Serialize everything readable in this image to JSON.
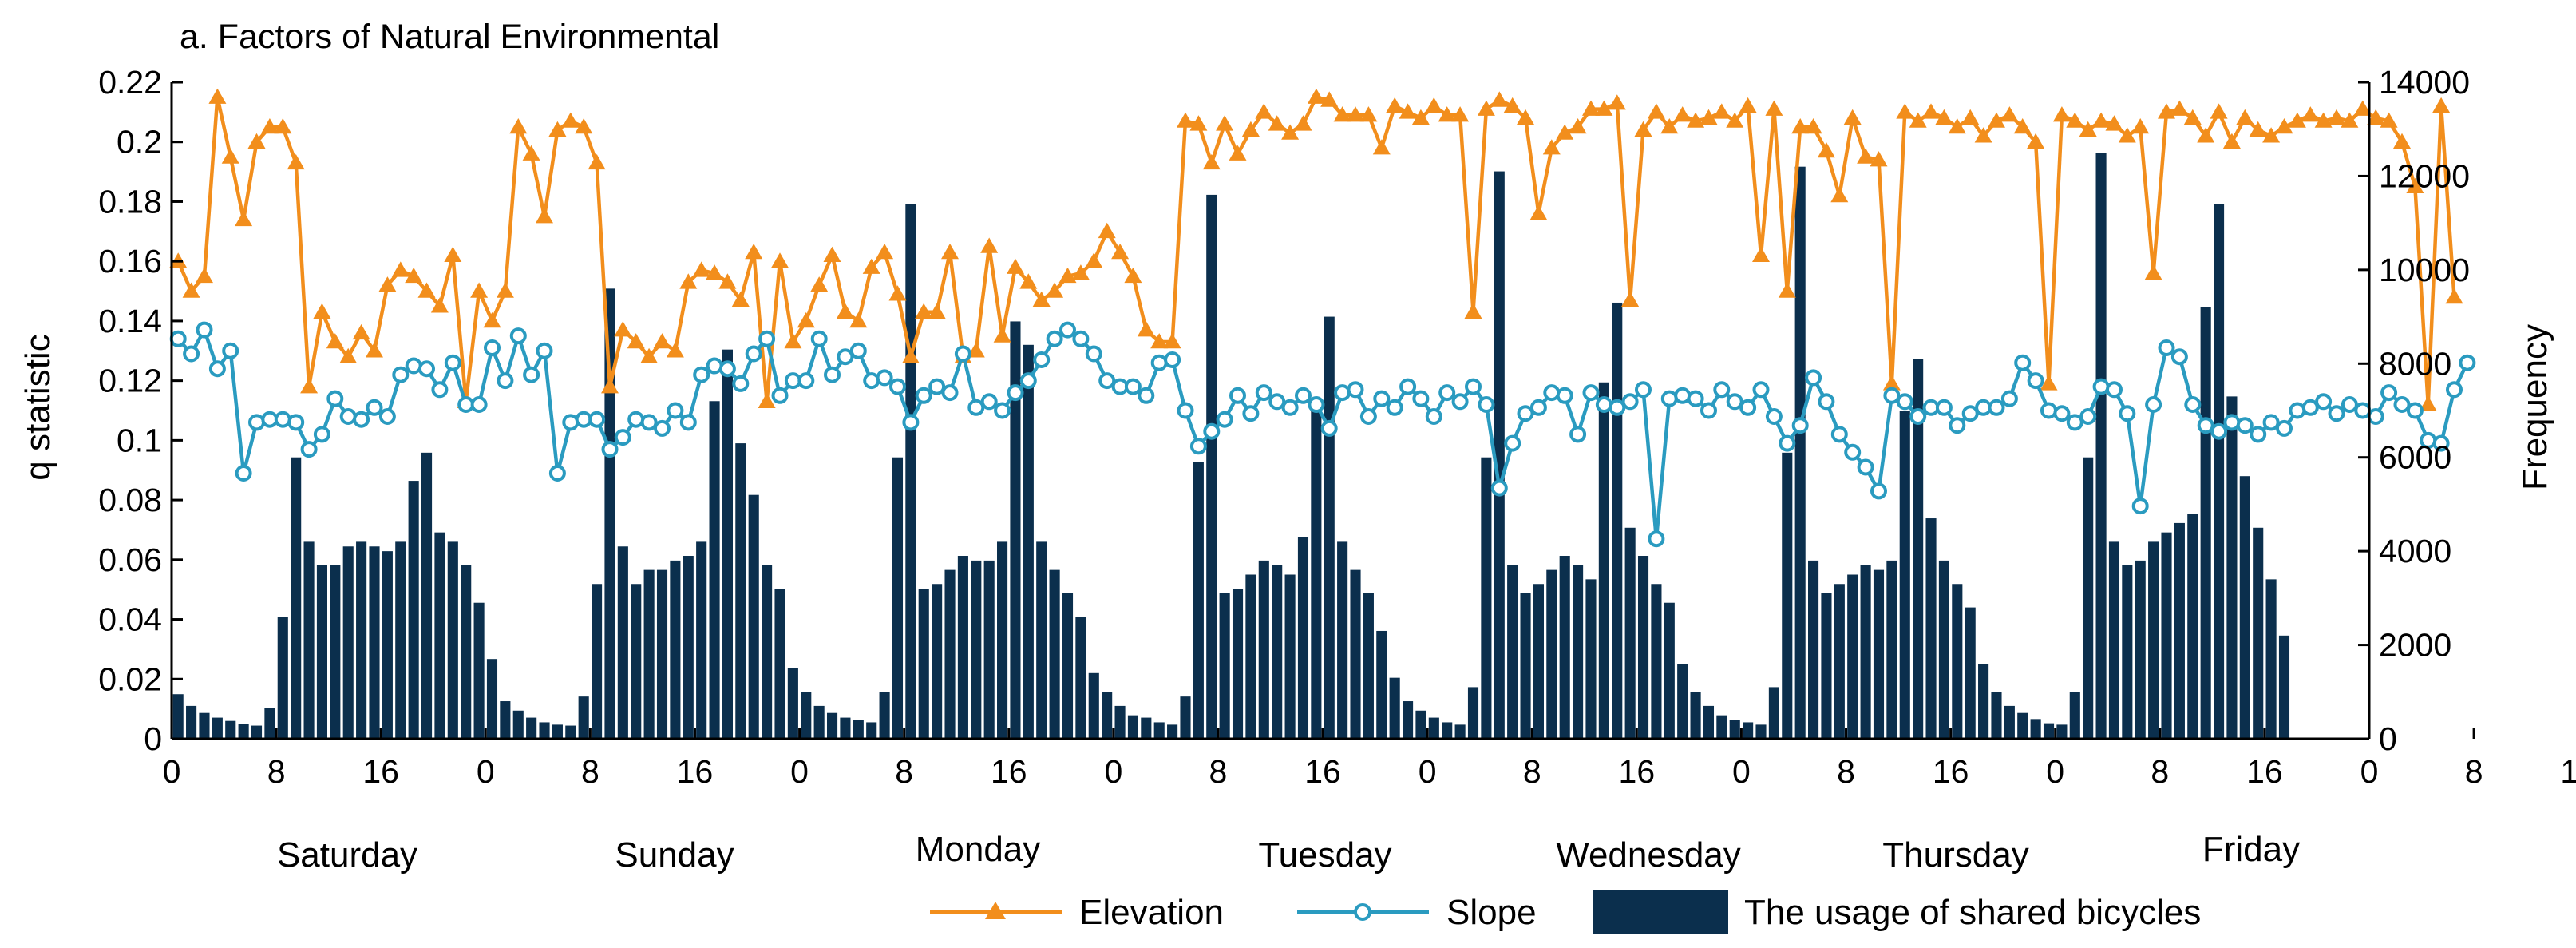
{
  "chart_data": {
    "type": "bar+line",
    "title": "a. Factors of Natural Environmental",
    "ylabel_left": "q statistic",
    "ylabel_right": "Frequency",
    "ylim_left": [
      0,
      0.22
    ],
    "ylim_right": [
      0,
      14000
    ],
    "yticks_left": [
      "0",
      "0.02",
      "0.04",
      "0.06",
      "0.08",
      "0.1",
      "0.12",
      "0.14",
      "0.16",
      "0.18",
      "0.2",
      "0.22"
    ],
    "yticks_right": [
      "0",
      "2000",
      "4000",
      "6000",
      "8000",
      "10000",
      "12000",
      "14000"
    ],
    "xticks": [
      "0",
      "8",
      "16",
      "0",
      "8",
      "16",
      "0",
      "8",
      "16",
      "0",
      "8",
      "16",
      "0",
      "8",
      "16",
      "0",
      "8",
      "16",
      "0",
      "8",
      "16",
      "0",
      "8",
      "16",
      "0"
    ],
    "days": [
      "Saturday",
      "Sunday",
      "Monday",
      "Tuesday",
      "Wednesday",
      "Thursday",
      "Friday"
    ],
    "grid": false,
    "legend_position": "bottom",
    "series": [
      {
        "name": "Elevation",
        "axis": "left",
        "color": "#f28e1c",
        "marker": "triangle",
        "values": [
          0.16,
          0.15,
          0.155,
          0.215,
          0.195,
          0.174,
          0.2,
          0.205,
          0.205,
          0.193,
          0.118,
          0.143,
          0.133,
          0.128,
          0.136,
          0.13,
          0.152,
          0.157,
          0.155,
          0.15,
          0.145,
          0.162,
          0.113,
          0.15,
          0.14,
          0.15,
          0.205,
          0.196,
          0.175,
          0.204,
          0.207,
          0.205,
          0.193,
          0.118,
          0.137,
          0.133,
          0.128,
          0.133,
          0.13,
          0.153,
          0.157,
          0.156,
          0.153,
          0.147,
          0.163,
          0.113,
          0.16,
          0.133,
          0.14,
          0.152,
          0.162,
          0.143,
          0.14,
          0.158,
          0.163,
          0.149,
          0.128,
          0.143,
          0.143,
          0.163,
          0.128,
          0.13,
          0.165,
          0.135,
          0.158,
          0.153,
          0.147,
          0.15,
          0.155,
          0.156,
          0.16,
          0.17,
          0.163,
          0.155,
          0.137,
          0.133,
          0.133,
          0.207,
          0.206,
          0.193,
          0.206,
          0.196,
          0.204,
          0.21,
          0.206,
          0.203,
          0.206,
          0.215,
          0.214,
          0.209,
          0.209,
          0.209,
          0.198,
          0.212,
          0.21,
          0.208,
          0.212,
          0.209,
          0.209,
          0.143,
          0.211,
          0.214,
          0.212,
          0.208,
          0.176,
          0.198,
          0.203,
          0.205,
          0.211,
          0.211,
          0.213,
          0.147,
          0.204,
          0.21,
          0.205,
          0.209,
          0.207,
          0.208,
          0.21,
          0.207,
          0.212,
          0.162,
          0.211,
          0.15,
          0.205,
          0.205,
          0.197,
          0.182,
          0.208,
          0.195,
          0.194,
          0.119,
          0.21,
          0.207,
          0.21,
          0.208,
          0.205,
          0.208,
          0.202,
          0.207,
          0.209,
          0.205,
          0.2,
          0.119,
          0.209,
          0.207,
          0.204,
          0.207,
          0.206,
          0.202,
          0.205,
          0.156,
          0.21,
          0.211,
          0.208,
          0.202,
          0.21,
          0.2,
          0.208,
          0.204,
          0.202,
          0.205,
          0.207,
          0.209,
          0.207,
          0.208,
          0.207,
          0.211,
          0.208,
          0.207,
          0.2,
          0.185,
          0.112,
          0.212,
          0.148
        ]
      },
      {
        "name": "Slope",
        "axis": "left",
        "color": "#2a9bc0",
        "marker": "circle",
        "values": [
          0.134,
          0.129,
          0.137,
          0.124,
          0.13,
          0.089,
          0.106,
          0.107,
          0.107,
          0.106,
          0.097,
          0.102,
          0.114,
          0.108,
          0.107,
          0.111,
          0.108,
          0.122,
          0.125,
          0.124,
          0.117,
          0.126,
          0.112,
          0.112,
          0.131,
          0.12,
          0.135,
          0.122,
          0.13,
          0.089,
          0.106,
          0.107,
          0.107,
          0.097,
          0.101,
          0.107,
          0.106,
          0.104,
          0.11,
          0.106,
          0.122,
          0.125,
          0.124,
          0.119,
          0.129,
          0.134,
          0.115,
          0.12,
          0.12,
          0.134,
          0.122,
          0.128,
          0.13,
          0.12,
          0.121,
          0.118,
          0.106,
          0.115,
          0.118,
          0.116,
          0.129,
          0.111,
          0.113,
          0.11,
          0.116,
          0.12,
          0.127,
          0.134,
          0.137,
          0.134,
          0.129,
          0.12,
          0.118,
          0.118,
          0.115,
          0.126,
          0.127,
          0.11,
          0.098,
          0.103,
          0.107,
          0.115,
          0.109,
          0.116,
          0.113,
          0.111,
          0.115,
          0.112,
          0.104,
          0.116,
          0.117,
          0.108,
          0.114,
          0.111,
          0.118,
          0.114,
          0.108,
          0.116,
          0.113,
          0.118,
          0.112,
          0.084,
          0.099,
          0.109,
          0.111,
          0.116,
          0.115,
          0.102,
          0.116,
          0.112,
          0.111,
          0.113,
          0.117,
          0.067,
          0.114,
          0.115,
          0.114,
          0.11,
          0.117,
          0.113,
          0.111,
          0.117,
          0.108,
          0.099,
          0.105,
          0.121,
          0.113,
          0.102,
          0.096,
          0.091,
          0.083,
          0.115,
          0.113,
          0.108,
          0.111,
          0.111,
          0.105,
          0.109,
          0.111,
          0.111,
          0.114,
          0.126,
          0.12,
          0.11,
          0.109,
          0.106,
          0.108,
          0.118,
          0.117,
          0.109,
          0.078,
          0.112,
          0.131,
          0.128,
          0.112,
          0.105,
          0.103,
          0.106,
          0.105,
          0.102,
          0.106,
          0.104,
          0.11,
          0.111,
          0.113,
          0.109,
          0.112,
          0.11,
          0.108,
          0.116,
          0.112,
          0.11,
          0.1,
          0.099,
          0.117,
          0.126
        ]
      },
      {
        "name": "The usage of shared bicycles",
        "axis": "right",
        "type": "bar",
        "color": "#0b2f4d",
        "values": [
          950,
          700,
          550,
          450,
          380,
          320,
          280,
          650,
          2600,
          6000,
          4200,
          3700,
          3700,
          4100,
          4200,
          4100,
          4000,
          4200,
          5500,
          6100,
          4400,
          4200,
          3700,
          2900,
          1700,
          800,
          600,
          450,
          350,
          300,
          280,
          900,
          3300,
          9600,
          4100,
          3300,
          3600,
          3600,
          3800,
          3900,
          4200,
          7200,
          8300,
          6300,
          5200,
          3700,
          3200,
          1500,
          1000,
          700,
          550,
          450,
          400,
          350,
          1000,
          6000,
          11400,
          3200,
          3300,
          3600,
          3900,
          3800,
          3800,
          4200,
          8900,
          8400,
          4200,
          3600,
          3100,
          2600,
          1400,
          1000,
          700,
          500,
          450,
          350,
          300,
          900,
          5900,
          11600,
          3100,
          3200,
          3500,
          3800,
          3700,
          3500,
          4300,
          7100,
          9000,
          4200,
          3600,
          3100,
          2300,
          1300,
          800,
          600,
          450,
          350,
          300,
          1100,
          6000,
          12100,
          3700,
          3100,
          3300,
          3600,
          3900,
          3700,
          3400,
          7600,
          9300,
          4500,
          3900,
          3300,
          2900,
          1600,
          1000,
          700,
          500,
          400,
          350,
          300,
          1100,
          6100,
          12200,
          3800,
          3100,
          3300,
          3500,
          3700,
          3600,
          3800,
          7000,
          8100,
          4700,
          3800,
          3300,
          2800,
          1600,
          1000,
          700,
          550,
          420,
          330,
          300,
          1000,
          6000,
          12500,
          4200,
          3700,
          3800,
          4200,
          4400,
          4600,
          4800,
          9200,
          11400,
          7300,
          5600,
          4500,
          3400,
          2200
        ]
      }
    ]
  }
}
